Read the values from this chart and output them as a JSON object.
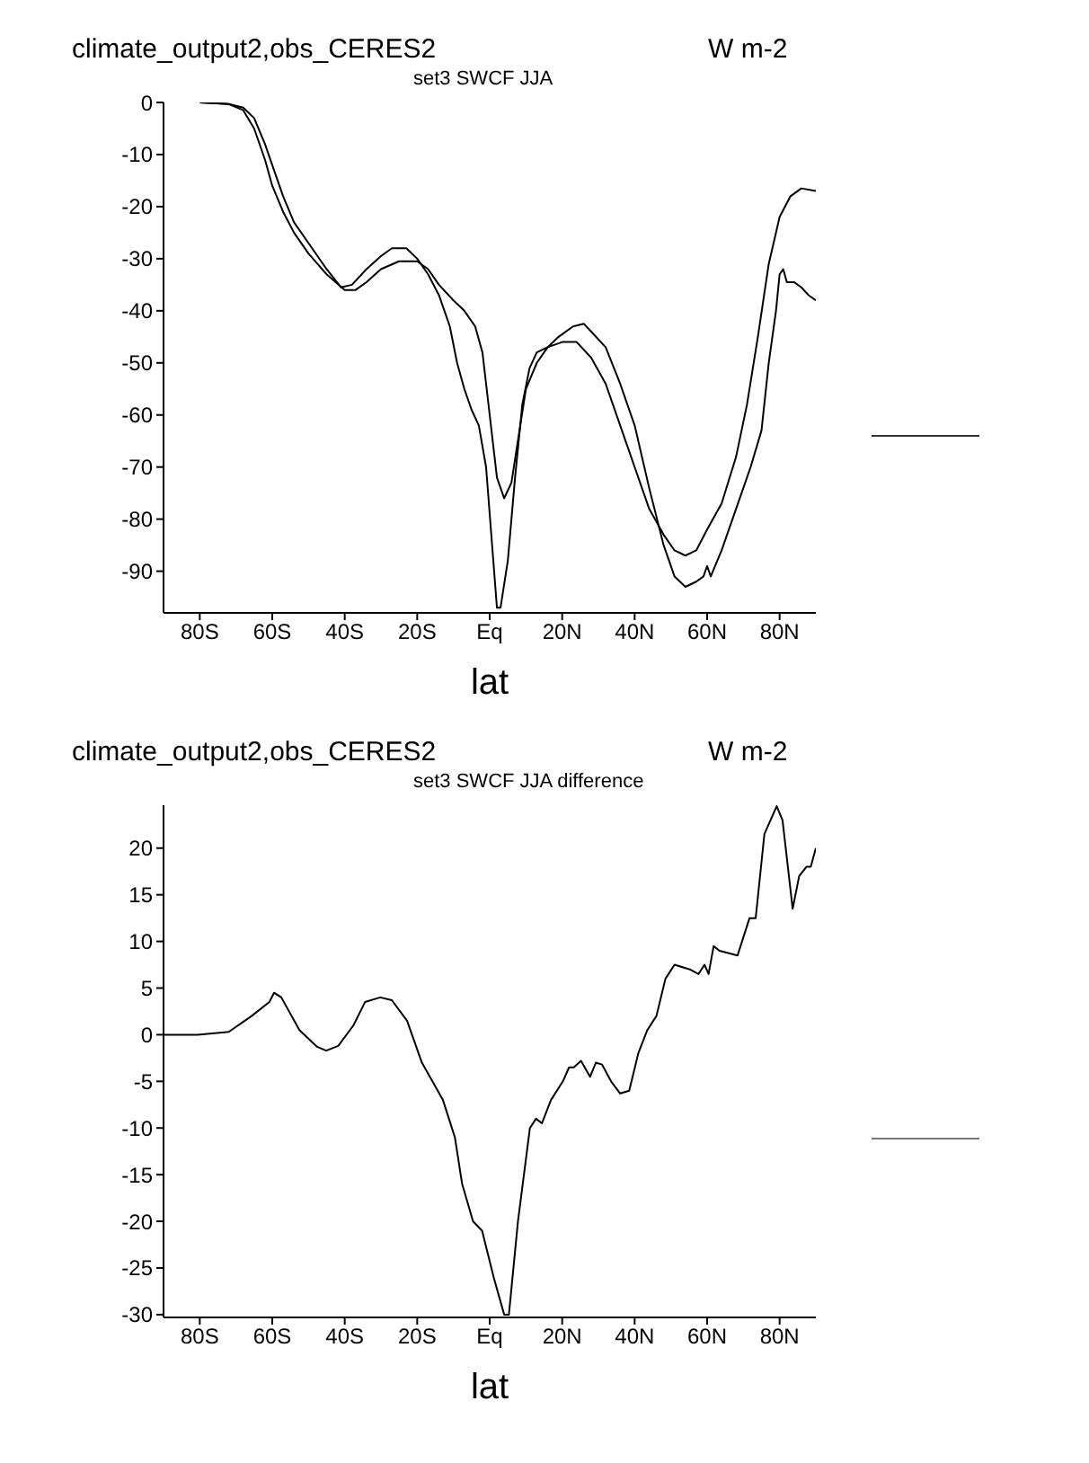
{
  "chart_data": [
    {
      "type": "line",
      "title": "climate_output2,obs_CERES2",
      "subtitle": "set3 SWCF JJA",
      "annotations": [
        "W m-2"
      ],
      "xlabel": "lat",
      "xlim": [
        -90,
        90
      ],
      "xticks": [
        {
          "value": -80,
          "label": "80S"
        },
        {
          "value": -60,
          "label": "60S"
        },
        {
          "value": -40,
          "label": "40S"
        },
        {
          "value": -20,
          "label": "20S"
        },
        {
          "value": 0,
          "label": "Eq"
        },
        {
          "value": 20,
          "label": "20N"
        },
        {
          "value": 40,
          "label": "40N"
        },
        {
          "value": 60,
          "label": "60N"
        },
        {
          "value": 80,
          "label": "80N"
        }
      ],
      "ylim": [
        -98,
        0
      ],
      "yticks": [
        -90,
        -80,
        -70,
        -60,
        -50,
        -40,
        -30,
        -20,
        -10,
        0
      ],
      "marker": "none",
      "line_style": "solid",
      "series": [
        {
          "color": "#000000",
          "x": [
            -80,
            -72,
            -68,
            -65,
            -62,
            -60,
            -57,
            -54,
            -50,
            -45,
            -41,
            -38,
            -34,
            -30,
            -27,
            -23,
            -20,
            -17,
            -14,
            -11,
            -9,
            -7,
            -5,
            -3,
            -1,
            1,
            2,
            3,
            5,
            7,
            9,
            11,
            13,
            16,
            20,
            24,
            28,
            32,
            36,
            40,
            44,
            48,
            51,
            54,
            57,
            60,
            64,
            68,
            71,
            74,
            77,
            80,
            83,
            86,
            90
          ],
          "values": [
            0,
            -0.3,
            -1,
            -3,
            -8,
            -12,
            -18,
            -23,
            -27,
            -32,
            -35.5,
            -35,
            -32,
            -29.5,
            -28,
            -28,
            -30,
            -33,
            -37,
            -43,
            -50,
            -55,
            -59,
            -62,
            -70,
            -88,
            -97,
            -97,
            -88,
            -72,
            -58,
            -51,
            -48,
            -47,
            -46,
            -46,
            -49,
            -54,
            -62,
            -70,
            -78,
            -83,
            -86,
            -87,
            -86,
            -82,
            -77,
            -68,
            -58,
            -45,
            -31,
            -22,
            -18,
            -16.5,
            -17
          ]
        },
        {
          "color": "#000000",
          "x": [
            -80,
            -72,
            -68,
            -65,
            -62,
            -60,
            -57,
            -54,
            -50,
            -45,
            -40,
            -37,
            -34,
            -30,
            -25,
            -20,
            -17,
            -14,
            -10,
            -7,
            -4,
            -2,
            0,
            2,
            4,
            6,
            8,
            10,
            13,
            16,
            19,
            23,
            26,
            28,
            32,
            36,
            40,
            44,
            48,
            51,
            54,
            57,
            59,
            60,
            61,
            64,
            68,
            72,
            75,
            77,
            79,
            80,
            81,
            82,
            84,
            86,
            88,
            90
          ],
          "values": [
            0,
            -0.3,
            -1.5,
            -5,
            -11,
            -16,
            -21,
            -25,
            -29,
            -33,
            -36,
            -36,
            -34.5,
            -32,
            -30.5,
            -30.5,
            -32,
            -35,
            -38,
            -40,
            -43,
            -48,
            -60,
            -72,
            -76,
            -73,
            -64,
            -55,
            -50,
            -47,
            -45,
            -43,
            -42.5,
            -44,
            -47,
            -54,
            -62,
            -74,
            -85,
            -91,
            -93,
            -92,
            -91,
            -89,
            -91,
            -86,
            -78,
            -70,
            -63,
            -50,
            -40,
            -33,
            -32,
            -34.5,
            -34.5,
            -35.5,
            -37,
            -38
          ]
        }
      ]
    },
    {
      "type": "line",
      "title": "climate_output2,obs_CERES2",
      "subtitle": "set3 SWCF JJA difference",
      "annotations": [
        "W m-2"
      ],
      "xlabel": "lat",
      "xlim": [
        -90,
        90
      ],
      "xticks": [
        {
          "value": -80,
          "label": "80S"
        },
        {
          "value": -60,
          "label": "60S"
        },
        {
          "value": -40,
          "label": "40S"
        },
        {
          "value": -20,
          "label": "20S"
        },
        {
          "value": 0,
          "label": "Eq"
        },
        {
          "value": 20,
          "label": "20N"
        },
        {
          "value": 40,
          "label": "40N"
        },
        {
          "value": 60,
          "label": "60N"
        },
        {
          "value": 80,
          "label": "80N"
        }
      ],
      "ylim": [
        -30.3,
        24.6
      ],
      "yticks": [
        -30,
        -25,
        -20,
        -15,
        -10,
        -5,
        0,
        5,
        10,
        15,
        20
      ],
      "marker": "none",
      "line_style": "solid",
      "series": [
        {
          "color": "#000000",
          "x": [
            -90,
            -80.6,
            -72,
            -65.7,
            -60.8,
            -59.5,
            -57.5,
            -52.5,
            -47.6,
            -45.1,
            -41.8,
            -37.6,
            -34.4,
            -30.2,
            -27,
            -22.8,
            -18.7,
            -12.9,
            -9.6,
            -7.6,
            -4.6,
            -2.1,
            1.1,
            4,
            5.3,
            7.8,
            11.1,
            12.8,
            14.4,
            16.9,
            20.2,
            21.9,
            23.2,
            25.2,
            27.7,
            29.3,
            31,
            33.5,
            36,
            38.5,
            41,
            43.5,
            46,
            48.5,
            51,
            55.2,
            57.6,
            59.3,
            60.4,
            61.8,
            63.4,
            68.4,
            71.7,
            73.4,
            75.8,
            79.2,
            80.8,
            83.6,
            85.4,
            87.4,
            88.6,
            90
          ],
          "values": [
            0,
            0,
            0.3,
            2,
            3.5,
            4.5,
            4,
            0.5,
            -1.3,
            -1.7,
            -1.2,
            1,
            3.5,
            4,
            3.7,
            1.5,
            -3,
            -7,
            -11,
            -16,
            -20,
            -21,
            -26,
            -30,
            -30,
            -20,
            -10,
            -9,
            -9.5,
            -7,
            -5,
            -3.5,
            -3.5,
            -2.8,
            -4.5,
            -3,
            -3.2,
            -5,
            -6.3,
            -6,
            -2,
            0.5,
            2,
            6,
            7.5,
            7,
            6.5,
            7.5,
            6.5,
            9.5,
            9,
            8.5,
            12.5,
            12.5,
            21.5,
            24.5,
            23,
            13.5,
            17,
            18,
            18,
            20
          ]
        }
      ]
    }
  ]
}
